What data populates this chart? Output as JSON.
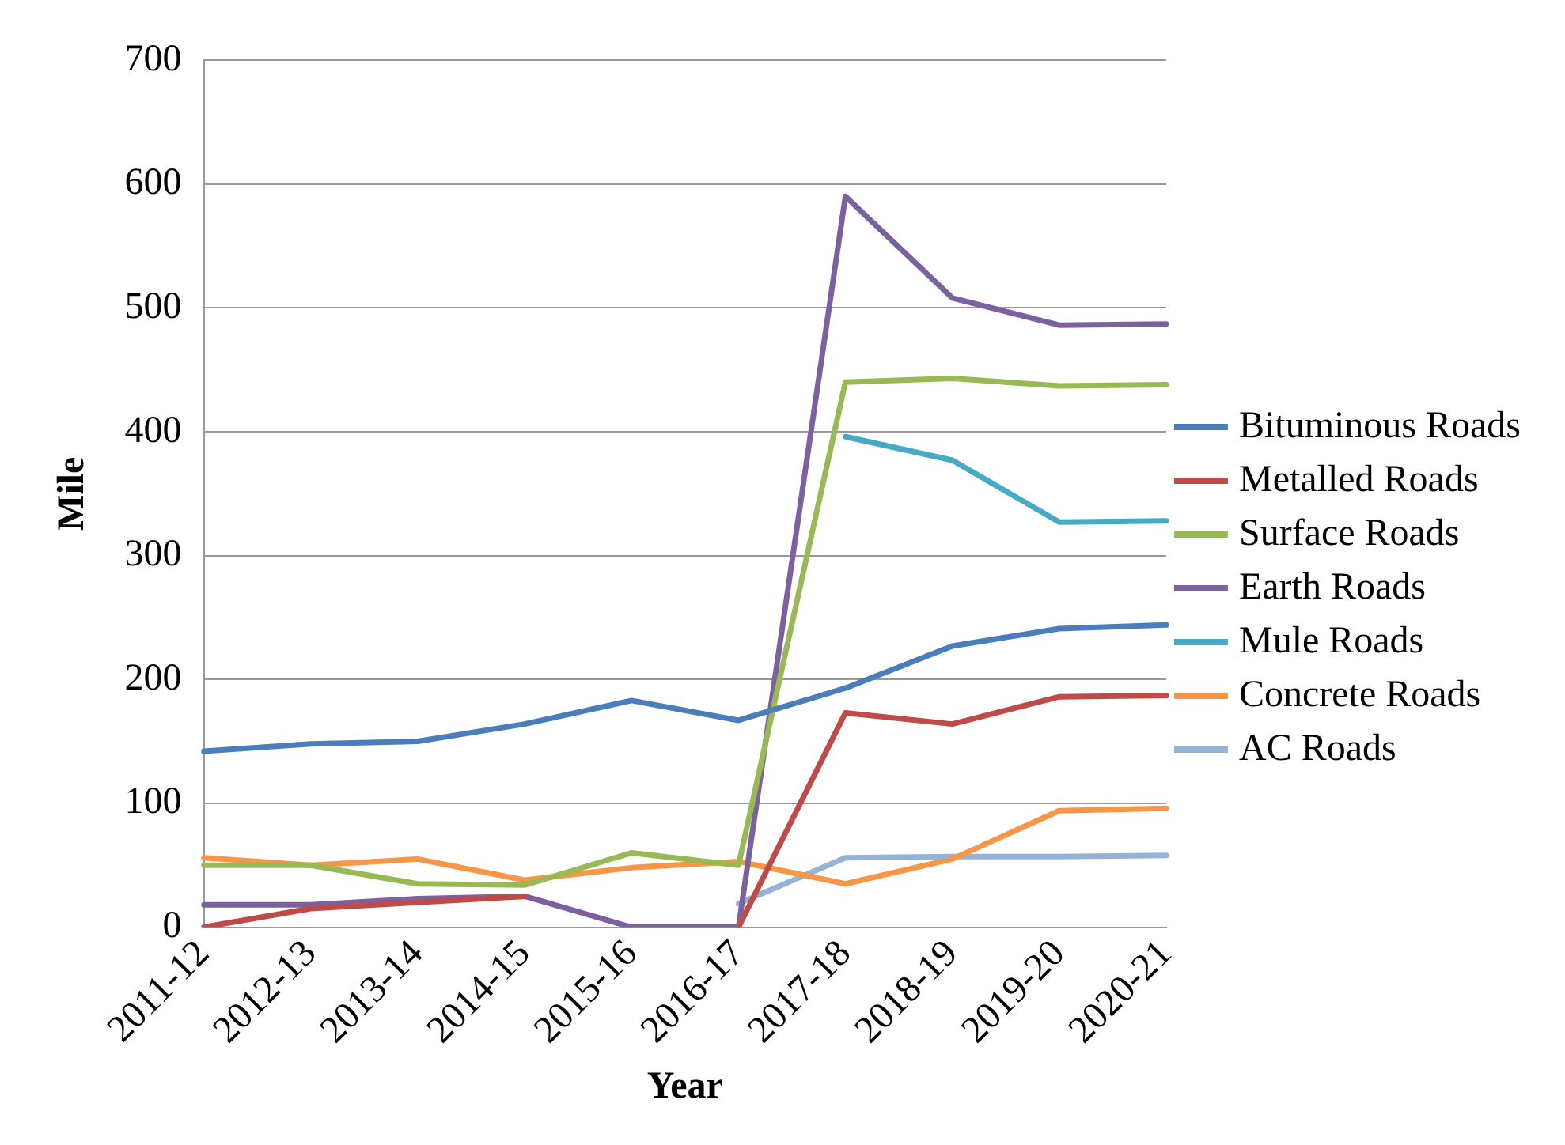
{
  "chart_data": {
    "type": "line",
    "xlabel": "Year",
    "ylabel": "Mile",
    "categories": [
      "2011-12",
      "2012-13",
      "2013-14",
      "2014-15",
      "2015-16",
      "2016-17",
      "2017-18",
      "2018-19",
      "2019-20",
      "2020-21"
    ],
    "series": [
      {
        "name": "Bituminous Roads",
        "color": "#4a7ebb",
        "values": [
          142,
          148,
          150,
          164,
          183,
          167,
          193,
          227,
          241,
          244
        ]
      },
      {
        "name": "Metalled Roads",
        "color": "#be4b48",
        "values": [
          0,
          15,
          20,
          25,
          null,
          0,
          173,
          164,
          186,
          187
        ]
      },
      {
        "name": "Surface Roads",
        "color": "#98b954",
        "values": [
          50,
          50,
          35,
          34,
          60,
          50,
          440,
          443,
          437,
          438
        ]
      },
      {
        "name": "Earth Roads",
        "color": "#7d60a0",
        "values": [
          18,
          18,
          23,
          25,
          0,
          0,
          590,
          508,
          486,
          487
        ]
      },
      {
        "name": "Mule Roads",
        "color": "#46aac5",
        "values": [
          null,
          null,
          null,
          null,
          null,
          null,
          396,
          377,
          327,
          328
        ]
      },
      {
        "name": "Concrete Roads",
        "color": "#f79646",
        "values": [
          56,
          50,
          55,
          38,
          48,
          53,
          35,
          55,
          94,
          96
        ]
      },
      {
        "name": "AC Roads",
        "color": "#95b3d7",
        "values": [
          null,
          null,
          null,
          null,
          null,
          19,
          56,
          57,
          57,
          58
        ]
      }
    ],
    "ylim": [
      0,
      700
    ],
    "yticks": [
      0,
      100,
      200,
      300,
      400,
      500,
      600,
      700
    ],
    "grid": "y",
    "legend": "right",
    "marker": "none",
    "line_style": "solid"
  }
}
